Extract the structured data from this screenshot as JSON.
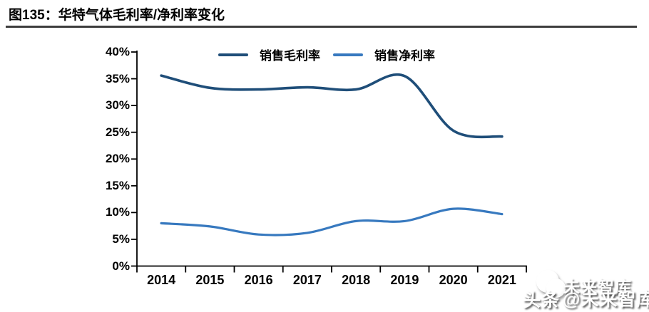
{
  "chart_data": {
    "type": "line",
    "title": "图135：华特气体毛利率/净利率变化",
    "categories": [
      "2014",
      "2015",
      "2016",
      "2017",
      "2018",
      "2019",
      "2020",
      "2021"
    ],
    "series": [
      {
        "name": "销售毛利率",
        "color": "#1F4E79",
        "values": [
          35.6,
          33.3,
          33.0,
          33.4,
          33.0,
          35.5,
          25.3,
          24.2
        ]
      },
      {
        "name": "销售净利率",
        "color": "#3779BF",
        "values": [
          8.0,
          7.4,
          5.9,
          6.2,
          8.4,
          8.4,
          10.7,
          9.7
        ]
      }
    ],
    "xlabel": "",
    "ylabel": "",
    "ylim": [
      0,
      40
    ],
    "y_tick_labels": [
      "0%",
      "5%",
      "10%",
      "15%",
      "20%",
      "25%",
      "30%",
      "35%",
      "40%"
    ],
    "grid": false,
    "smooth": true,
    "legend_position": "top-center",
    "axis_color": "#000000"
  },
  "watermark": {
    "brand": "未来智库",
    "platform": "头条",
    "handle": "@未来智库"
  }
}
